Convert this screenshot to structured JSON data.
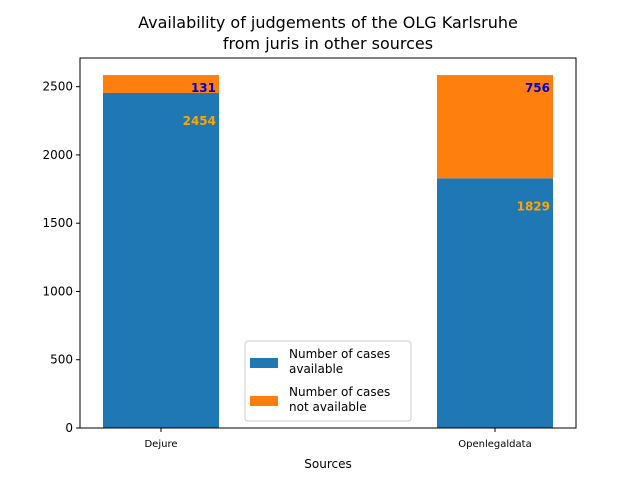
{
  "chart_data": {
    "type": "bar",
    "stacked": true,
    "title_lines": [
      "Availability of judgements of the OLG Karlsruhe",
      "from juris in other sources"
    ],
    "xlabel": "Sources",
    "ylabel": "",
    "categories": [
      "Dejure",
      "Openlegaldata"
    ],
    "ylim": [
      0,
      2710
    ],
    "yticks": [
      0,
      500,
      1000,
      1500,
      2000,
      2500
    ],
    "grid": false,
    "legend_position": "bottom-center",
    "series": [
      {
        "name": "Number of cases\navailable",
        "legend_lines": [
          "Number of cases",
          "available"
        ],
        "values": [
          2454,
          1829
        ],
        "color": "#1f77b4",
        "label_color": "#ffa500"
      },
      {
        "name": "Number of cases\nnot available",
        "legend_lines": [
          "Number of cases",
          "not available"
        ],
        "values": [
          131,
          756
        ],
        "color": "#ff7f0e",
        "label_color": "#0000cd"
      }
    ]
  }
}
